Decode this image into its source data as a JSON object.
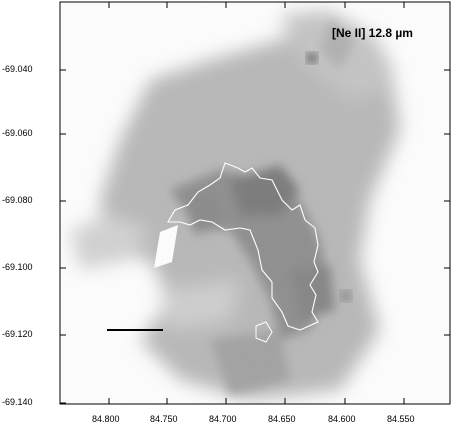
{
  "image": {
    "title": "[Ne II] 12.8 µm",
    "y_ticks": [
      "-69.040",
      "-69.060",
      "-69.080",
      "-69.100",
      "-69.120",
      "-69.140"
    ],
    "x_ticks": [
      "84.800",
      "84.750",
      "84.700",
      "84.650",
      "84.600",
      "84.550"
    ]
  }
}
